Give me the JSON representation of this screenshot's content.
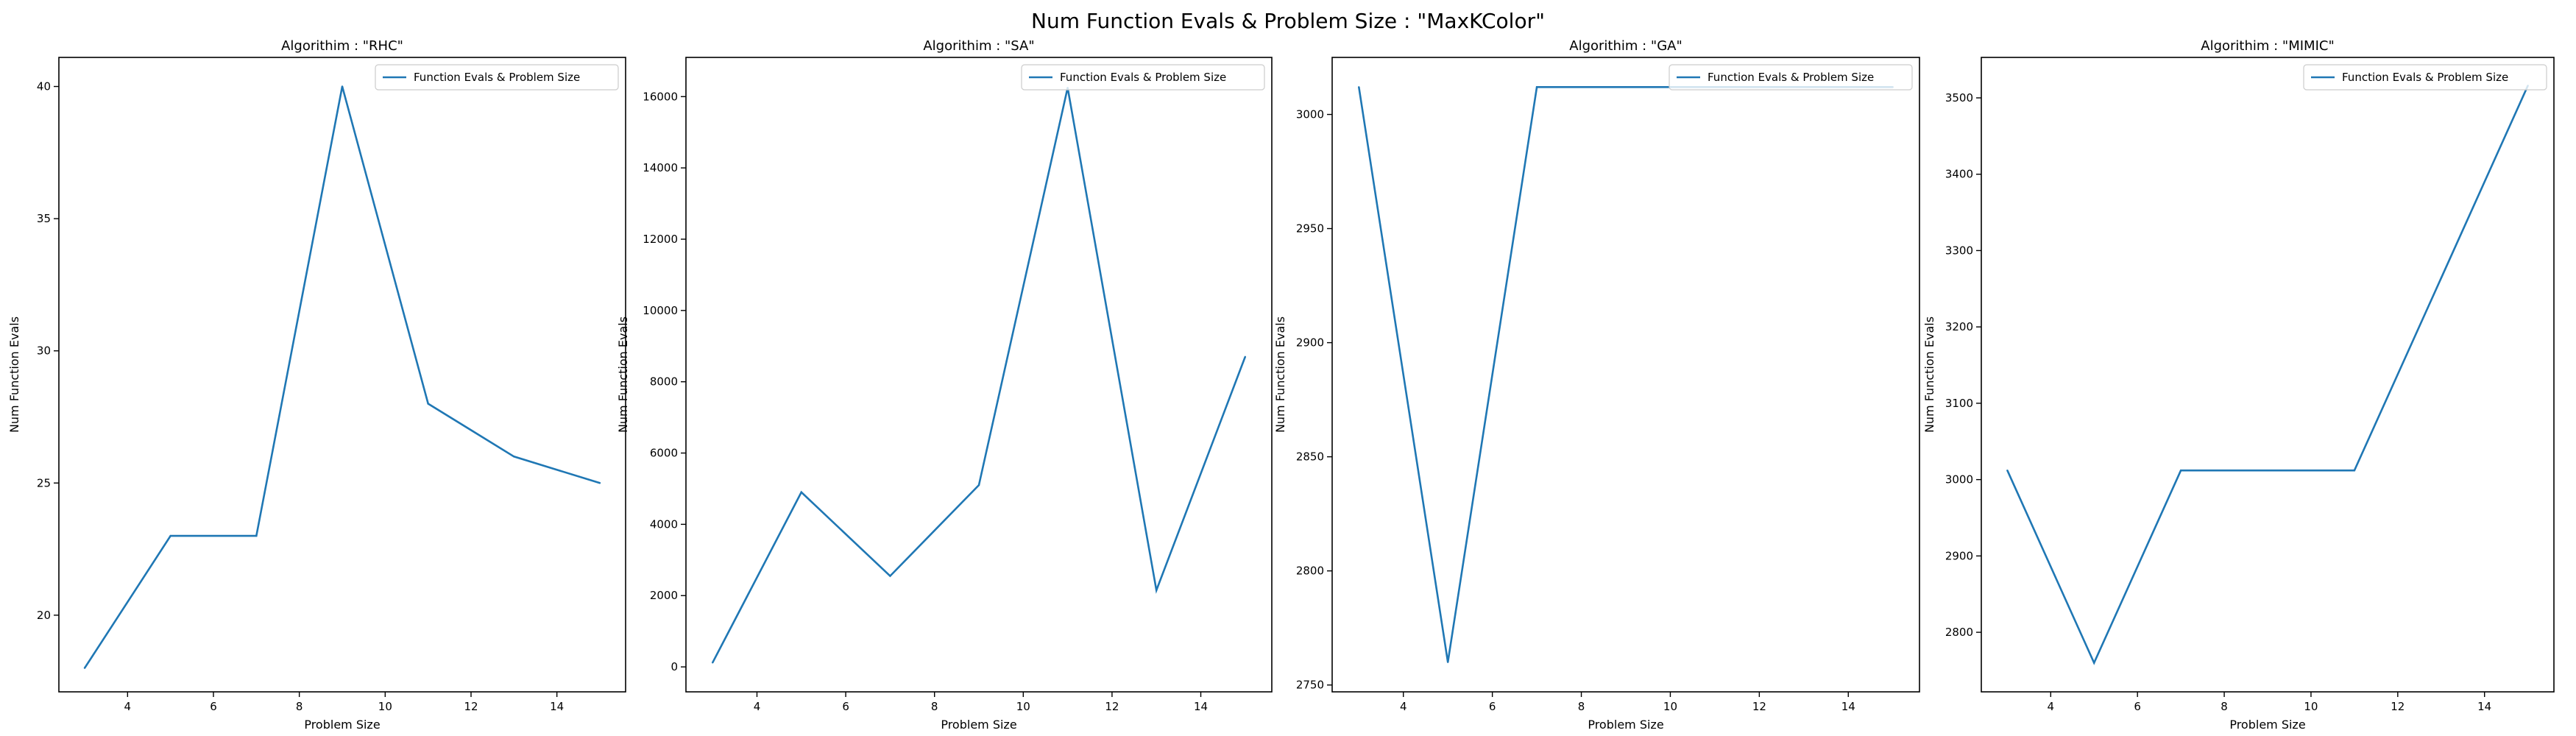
{
  "suptitle": "Num Function Evals & Problem Size : \"MaxKColor\"",
  "colors": {
    "line": "#1f77b4",
    "axes": "#000000",
    "legend_border": "#cccccc"
  },
  "chart_data": [
    {
      "type": "line",
      "title": "Algorithim : \"RHC\"",
      "xlabel": "Problem Size",
      "ylabel": "Num Function Evals",
      "xlim": [
        2.4,
        15.6
      ],
      "ylim": [
        17.1,
        41.1
      ],
      "xticks": [
        4,
        6,
        8,
        10,
        12,
        14
      ],
      "xtick_labels": [
        "4",
        "6",
        "8",
        "10",
        "12",
        "14"
      ],
      "yticks": [
        20,
        25,
        30,
        35,
        40
      ],
      "ytick_labels": [
        "20",
        "25",
        "30",
        "35",
        "40"
      ],
      "legend_loc": "upper right",
      "grid": false,
      "series": [
        {
          "name": "Function Evals & Problem Size",
          "x": [
            3,
            5,
            7,
            9,
            11,
            13,
            15
          ],
          "y": [
            18,
            23,
            23,
            40,
            28,
            26,
            25
          ]
        }
      ]
    },
    {
      "type": "line",
      "title": "Algorithim : \"SA\"",
      "xlabel": "Problem Size",
      "ylabel": "Num Function Evals",
      "xlim": [
        2.4,
        15.6
      ],
      "ylim": [
        -700,
        17100
      ],
      "xticks": [
        4,
        6,
        8,
        10,
        12,
        14
      ],
      "xtick_labels": [
        "4",
        "6",
        "8",
        "10",
        "12",
        "14"
      ],
      "yticks": [
        0,
        2000,
        4000,
        6000,
        8000,
        10000,
        12000,
        14000,
        16000
      ],
      "ytick_labels": [
        "0",
        "2000",
        "4000",
        "6000",
        "8000",
        "10000",
        "12000",
        "14000",
        "16000"
      ],
      "legend_loc": "upper right",
      "grid": false,
      "series": [
        {
          "name": "Function Evals & Problem Size",
          "x": [
            3,
            5,
            7,
            9,
            11,
            13,
            15
          ],
          "y": [
            120,
            4900,
            2550,
            5100,
            16250,
            2150,
            8700
          ]
        }
      ]
    },
    {
      "type": "line",
      "title": "Algorithim : \"GA\"",
      "xlabel": "Problem Size",
      "ylabel": "Num Function Evals",
      "xlim": [
        2.4,
        15.6
      ],
      "ylim": [
        2747,
        3025
      ],
      "xticks": [
        4,
        6,
        8,
        10,
        12,
        14
      ],
      "xtick_labels": [
        "4",
        "6",
        "8",
        "10",
        "12",
        "14"
      ],
      "yticks": [
        2750,
        2800,
        2850,
        2900,
        2950,
        3000
      ],
      "ytick_labels": [
        "2750",
        "2800",
        "2850",
        "2900",
        "2950",
        "3000"
      ],
      "legend_loc": "upper right",
      "grid": false,
      "series": [
        {
          "name": "Function Evals & Problem Size",
          "x": [
            3,
            5,
            7,
            9,
            11,
            13,
            15
          ],
          "y": [
            3012,
            2760,
            3012,
            3012,
            3012,
            3012,
            3012
          ]
        }
      ]
    },
    {
      "type": "line",
      "title": "Algorithim : \"MIMIC\"",
      "xlabel": "Problem Size",
      "ylabel": "Num Function Evals",
      "xlim": [
        2.4,
        15.6
      ],
      "ylim": [
        2722,
        3553
      ],
      "xticks": [
        4,
        6,
        8,
        10,
        12,
        14
      ],
      "xtick_labels": [
        "4",
        "6",
        "8",
        "10",
        "12",
        "14"
      ],
      "yticks": [
        2800,
        2900,
        3000,
        3100,
        3200,
        3300,
        3400,
        3500
      ],
      "ytick_labels": [
        "2800",
        "2900",
        "3000",
        "3100",
        "3200",
        "3300",
        "3400",
        "3500"
      ],
      "legend_loc": "upper right",
      "grid": false,
      "series": [
        {
          "name": "Function Evals & Problem Size",
          "x": [
            3,
            5,
            7,
            9,
            11,
            13,
            15
          ],
          "y": [
            3012,
            2760,
            3012,
            3012,
            3012,
            3264,
            3516
          ]
        }
      ]
    }
  ]
}
